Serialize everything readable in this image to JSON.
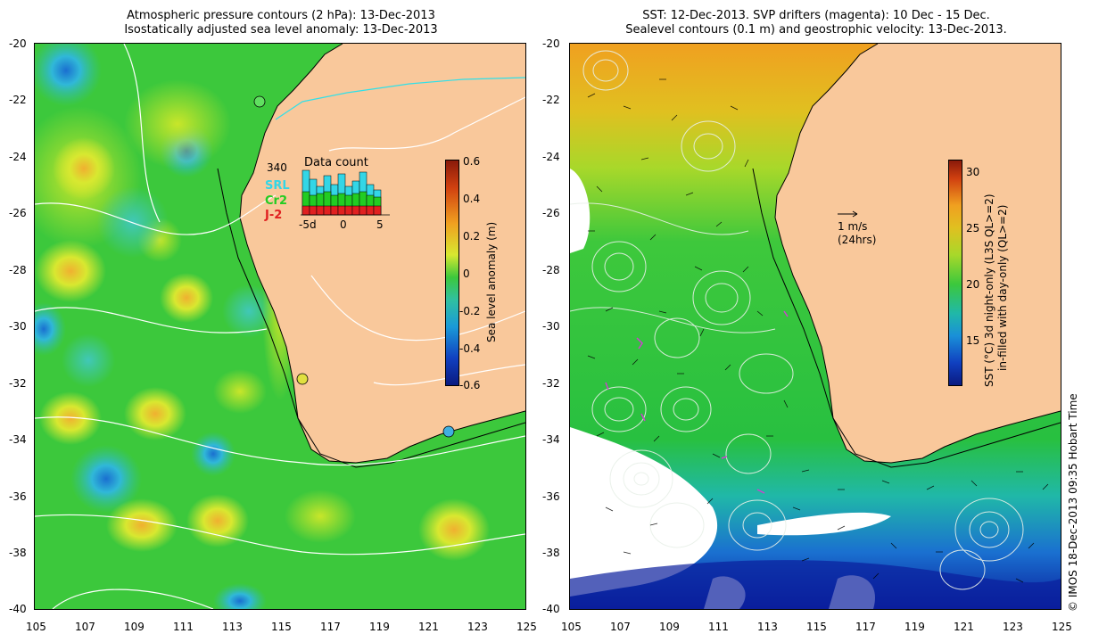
{
  "left_panel": {
    "title_line1": "Atmospheric pressure contours (2 hPa): 13-Dec-2013",
    "title_line2": "Isostatically adjusted sea level anomaly: 13-Dec-2013",
    "inset": {
      "title": "Data count",
      "max_label": "340",
      "legend": [
        "SRL",
        "Cr2",
        "J-2"
      ],
      "legend_colors": [
        "#33d6e6",
        "#22cc22",
        "#e02020"
      ],
      "x_ticks": [
        "-5d",
        "0",
        "5"
      ]
    },
    "colorbar": {
      "label": "Sea level anomaly (m)",
      "ticks": [
        "0.6",
        "0.4",
        "0.2",
        "0",
        "-0.2",
        "-0.4",
        "-0.6"
      ]
    }
  },
  "right_panel": {
    "title_line1": "SST: 12-Dec-2013. SVP drifters (magenta): 10 Dec - 15 Dec.",
    "title_line2": "Sealevel contours (0.1 m) and geostrophic velocity: 13-Dec-2013.",
    "scale_arrow_label1": "1 m/s",
    "scale_arrow_label2": "(24hrs)",
    "colorbar": {
      "label1": "SST (°C)  3d night-only (L3S QL>=2)",
      "label2": "in-filled with day-only (QL>=2)",
      "ticks": [
        "30",
        "25",
        "20",
        "15"
      ]
    }
  },
  "axes": {
    "y_ticks": [
      "-20",
      "-22",
      "-24",
      "-26",
      "-28",
      "-30",
      "-32",
      "-34",
      "-36",
      "-38",
      "-40"
    ],
    "x_ticks": [
      "105",
      "107",
      "109",
      "111",
      "113",
      "115",
      "117",
      "119",
      "121",
      "123",
      "125"
    ]
  },
  "credit": "© IMOS 18-Dec-2013 09:35 Hobart Time",
  "colors": {
    "land": "#f9c89b",
    "sea_green": "#2ec82e",
    "sea_yellow": "#c8e62a",
    "sea_blue": "#2aa0d8",
    "deep_blue": "#0a1e9c",
    "orange": "#f0a020"
  }
}
